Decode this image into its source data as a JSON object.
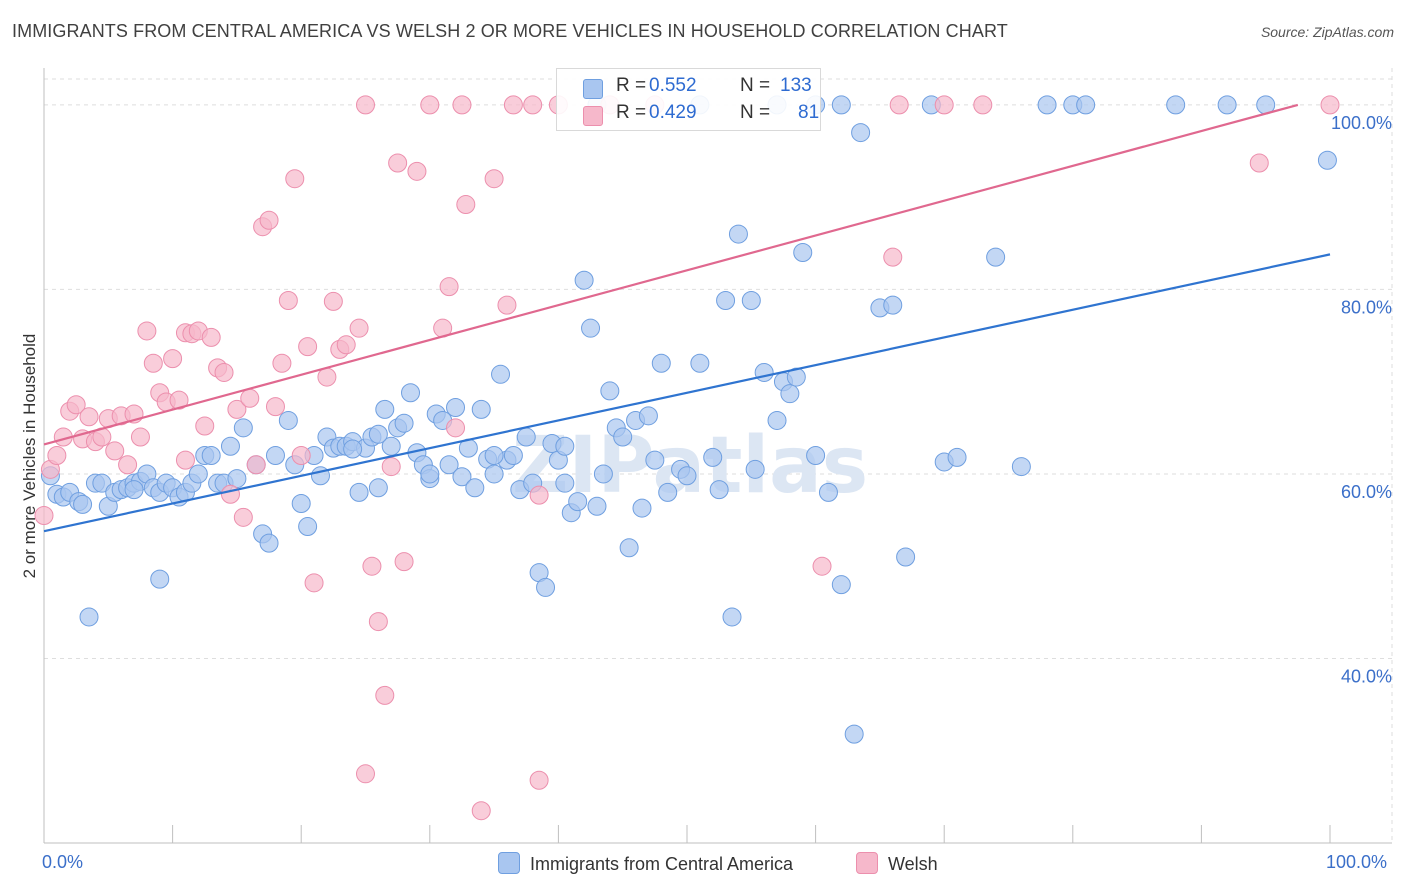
{
  "title": "IMMIGRANTS FROM CENTRAL AMERICA VS WELSH 2 OR MORE VEHICLES IN HOUSEHOLD CORRELATION CHART",
  "source": "Source: ZipAtlas.com",
  "legend": {
    "rows": [
      {
        "r_label": "R = ",
        "r_value": "0.552",
        "n_label": "N = ",
        "n_value": "133"
      },
      {
        "r_label": "R = ",
        "r_value": "0.429",
        "n_label": "N = ",
        "n_value": "81"
      }
    ]
  },
  "colors": {
    "blue_fill": "#a9c6f0",
    "blue_stroke": "#6f9fe0",
    "blue_line": "#2f74d0",
    "pink_fill": "#f6b8cb",
    "pink_stroke": "#ec8fad",
    "pink_line": "#e0688f",
    "axis_text": "#3b6fc9"
  },
  "chart_data": {
    "type": "scatter",
    "title": "IMMIGRANTS FROM CENTRAL AMERICA VS WELSH 2 OR MORE VEHICLES IN HOUSEHOLD CORRELATION CHART",
    "xlabel": "",
    "ylabel": "2 or more Vehicles in Household",
    "xlim": [
      0,
      100
    ],
    "ylim": [
      20,
      104
    ],
    "x_tick_labels": [
      "0.0%",
      "100.0%"
    ],
    "y_ticks": [
      40,
      60,
      80,
      100
    ],
    "y_tick_labels": [
      "40.0%",
      "60.0%",
      "80.0%",
      "100.0%"
    ],
    "grid": true,
    "legend_position": "top-center",
    "series": [
      {
        "name": "Immigrants from Central America",
        "r": 0.552,
        "n": 133,
        "trend": [
          [
            0,
            53.8
          ],
          [
            100,
            83.8
          ]
        ],
        "points": [
          [
            0.5,
            59.8
          ],
          [
            1,
            57.8
          ],
          [
            1.5,
            57.5
          ],
          [
            2,
            58
          ],
          [
            2.7,
            57
          ],
          [
            3,
            56.7
          ],
          [
            4,
            59
          ],
          [
            4.5,
            59
          ],
          [
            5,
            56.5
          ],
          [
            5.5,
            58
          ],
          [
            6,
            58.3
          ],
          [
            6.5,
            58.5
          ],
          [
            7,
            59
          ],
          [
            7.5,
            59.2
          ],
          [
            8,
            60
          ],
          [
            8.5,
            58.5
          ],
          [
            9,
            58
          ],
          [
            9.5,
            59
          ],
          [
            10,
            58.5
          ],
          [
            10.5,
            57.5
          ],
          [
            11,
            58
          ],
          [
            11.5,
            59
          ],
          [
            12,
            60
          ],
          [
            12.5,
            62
          ],
          [
            13,
            62
          ],
          [
            13.5,
            59
          ],
          [
            14,
            59
          ],
          [
            14.5,
            63
          ],
          [
            15,
            59.5
          ],
          [
            15.5,
            65
          ],
          [
            16.5,
            61
          ],
          [
            17,
            53.5
          ],
          [
            17.5,
            52.5
          ],
          [
            18,
            62
          ],
          [
            19,
            65.8
          ],
          [
            19.5,
            61
          ],
          [
            20,
            56.8
          ],
          [
            20.5,
            54.3
          ],
          [
            21,
            62
          ],
          [
            21.5,
            59.8
          ],
          [
            22,
            64
          ],
          [
            22.5,
            62.8
          ],
          [
            23,
            63
          ],
          [
            23.5,
            63
          ],
          [
            24,
            63.5
          ],
          [
            24.5,
            58
          ],
          [
            25,
            62.8
          ],
          [
            25.5,
            64
          ],
          [
            26,
            58.5
          ],
          [
            26.5,
            67
          ],
          [
            27,
            63
          ],
          [
            27.5,
            65
          ],
          [
            28,
            65.5
          ],
          [
            28.5,
            68.8
          ],
          [
            29,
            62.3
          ],
          [
            29.5,
            61
          ],
          [
            30,
            59.5
          ],
          [
            30.5,
            66.5
          ],
          [
            31,
            65.8
          ],
          [
            31.5,
            61
          ],
          [
            32,
            67.2
          ],
          [
            32.5,
            59.7
          ],
          [
            33,
            62.8
          ],
          [
            33.5,
            58.5
          ],
          [
            34,
            67
          ],
          [
            34.5,
            61.6
          ],
          [
            35,
            60
          ],
          [
            35.5,
            70.8
          ],
          [
            36,
            61.5
          ],
          [
            36.5,
            62
          ],
          [
            37,
            58.3
          ],
          [
            37.5,
            64
          ],
          [
            38,
            59
          ],
          [
            38.5,
            49.3
          ],
          [
            39,
            47.7
          ],
          [
            39.5,
            63.3
          ],
          [
            40,
            61.5
          ],
          [
            40.5,
            59
          ],
          [
            41,
            55.8
          ],
          [
            41.5,
            57
          ],
          [
            42,
            81
          ],
          [
            42.5,
            75.8
          ],
          [
            43,
            56.5
          ],
          [
            43.5,
            60
          ],
          [
            44,
            69
          ],
          [
            44.5,
            65
          ],
          [
            45,
            64
          ],
          [
            45.5,
            52
          ],
          [
            46,
            65.8
          ],
          [
            46.5,
            56.3
          ],
          [
            47,
            66.3
          ],
          [
            48,
            72
          ],
          [
            48.5,
            58
          ],
          [
            49.5,
            60.5
          ],
          [
            50,
            59.8
          ],
          [
            51,
            72
          ],
          [
            52,
            61.8
          ],
          [
            52.5,
            58.3
          ],
          [
            53,
            78.8
          ],
          [
            53.5,
            44.5
          ],
          [
            54,
            86
          ],
          [
            55,
            78.8
          ],
          [
            56,
            71
          ],
          [
            57,
            65.8
          ],
          [
            57.5,
            70
          ],
          [
            58,
            68.7
          ],
          [
            58.5,
            70.5
          ],
          [
            59,
            84
          ],
          [
            60,
            62
          ],
          [
            61,
            58
          ],
          [
            62,
            48
          ],
          [
            63,
            31.8
          ],
          [
            63.5,
            97
          ],
          [
            65,
            78
          ],
          [
            66,
            78.3
          ],
          [
            67,
            51
          ],
          [
            70,
            61.3
          ],
          [
            71,
            61.8
          ],
          [
            74,
            83.5
          ],
          [
            76,
            60.8
          ],
          [
            88,
            100
          ],
          [
            92,
            100
          ],
          [
            60,
            100
          ],
          [
            57,
            100
          ],
          [
            43,
            100
          ],
          [
            62,
            100
          ],
          [
            30,
            60
          ],
          [
            35,
            62
          ],
          [
            7,
            58.3
          ],
          [
            9,
            48.6
          ],
          [
            3.5,
            44.5
          ],
          [
            55.3,
            60.5
          ],
          [
            40.5,
            63
          ],
          [
            99.8,
            94
          ],
          [
            95,
            100
          ],
          [
            80,
            100
          ],
          [
            78,
            100
          ],
          [
            81,
            100
          ],
          [
            69,
            100
          ],
          [
            51,
            100
          ],
          [
            24,
            62.7
          ],
          [
            26,
            64.3
          ],
          [
            47.5,
            61.5
          ]
        ]
      },
      {
        "name": "Welsh",
        "r": 0.429,
        "n": 81,
        "trend": [
          [
            0,
            63.2
          ],
          [
            97.5,
            100
          ]
        ],
        "points": [
          [
            0,
            55.5
          ],
          [
            0.5,
            60.5
          ],
          [
            1,
            62
          ],
          [
            1.5,
            64
          ],
          [
            2,
            66.8
          ],
          [
            2.5,
            67.5
          ],
          [
            3,
            63.8
          ],
          [
            3.5,
            66.2
          ],
          [
            4,
            63.5
          ],
          [
            4.5,
            64
          ],
          [
            5,
            66
          ],
          [
            5.5,
            62.5
          ],
          [
            6,
            66.3
          ],
          [
            6.5,
            61
          ],
          [
            7,
            66.5
          ],
          [
            7.5,
            64
          ],
          [
            8,
            75.5
          ],
          [
            8.5,
            72
          ],
          [
            9,
            68.8
          ],
          [
            9.5,
            67.8
          ],
          [
            10,
            72.5
          ],
          [
            10.5,
            68
          ],
          [
            11,
            75.3
          ],
          [
            11.5,
            75.2
          ],
          [
            12,
            75.5
          ],
          [
            12.5,
            65.2
          ],
          [
            13,
            74.8
          ],
          [
            13.5,
            71.5
          ],
          [
            14,
            71
          ],
          [
            14.5,
            57.8
          ],
          [
            15,
            67
          ],
          [
            15.5,
            55.3
          ],
          [
            16,
            68.2
          ],
          [
            16.5,
            61
          ],
          [
            17,
            86.8
          ],
          [
            17.5,
            87.5
          ],
          [
            18,
            67.3
          ],
          [
            18.5,
            72
          ],
          [
            19,
            78.8
          ],
          [
            19.5,
            92
          ],
          [
            20,
            62
          ],
          [
            20.5,
            73.8
          ],
          [
            21,
            48.2
          ],
          [
            22,
            70.5
          ],
          [
            22.5,
            78.7
          ],
          [
            23,
            73.5
          ],
          [
            23.5,
            74
          ],
          [
            24.5,
            75.8
          ],
          [
            25,
            100
          ],
          [
            25.5,
            50
          ],
          [
            26,
            44
          ],
          [
            26.5,
            36
          ],
          [
            27,
            60.8
          ],
          [
            27.5,
            93.7
          ],
          [
            28,
            50.5
          ],
          [
            29,
            92.8
          ],
          [
            30,
            100
          ],
          [
            31,
            75.8
          ],
          [
            31.5,
            80.3
          ],
          [
            32,
            65
          ],
          [
            32.5,
            100
          ],
          [
            32.8,
            89.2
          ],
          [
            35,
            92
          ],
          [
            36,
            78.3
          ],
          [
            36.5,
            100
          ],
          [
            38,
            100
          ],
          [
            38.5,
            57.7
          ],
          [
            40,
            100
          ],
          [
            60.5,
            50
          ],
          [
            66.5,
            100
          ],
          [
            70,
            100
          ],
          [
            73,
            100
          ],
          [
            94.5,
            93.7
          ],
          [
            100,
            100
          ],
          [
            47.5,
            100
          ],
          [
            44,
            100
          ],
          [
            25,
            27.5
          ],
          [
            34,
            23.5
          ],
          [
            38.5,
            26.8
          ],
          [
            66,
            83.5
          ],
          [
            11,
            61.5
          ]
        ]
      }
    ]
  },
  "bottom_legend": {
    "items": [
      {
        "label": "Immigrants from Central America"
      },
      {
        "label": "Welsh"
      }
    ]
  },
  "watermark": "ZIPatlas"
}
